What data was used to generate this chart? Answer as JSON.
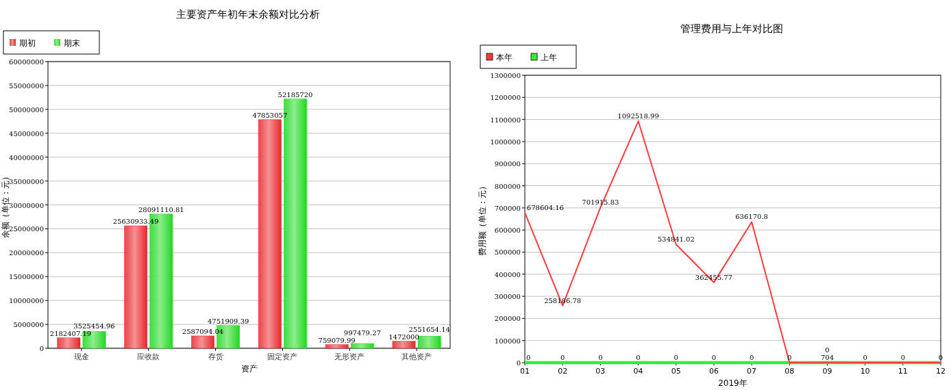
{
  "chart_data": [
    {
      "type": "bar",
      "title": "主要资产年初年末余额对比分析",
      "xlabel": "资产",
      "ylabel": "余额（单位：元）",
      "categories": [
        "现金",
        "应收款",
        "存货",
        "固定资产",
        "无形资产",
        "其他资产"
      ],
      "series": [
        {
          "name": "期初",
          "color": "#e8262b",
          "values": [
            2182407.19,
            25630933.49,
            2587094.04,
            47853057,
            759079.99,
            1472000
          ]
        },
        {
          "name": "期末",
          "color": "#1fd81f",
          "values": [
            3525454.96,
            28091110.81,
            4751909.39,
            52185720,
            997479.27,
            2551654.14
          ]
        }
      ],
      "ylim": [
        0,
        60000000
      ],
      "yticks": [
        0,
        5000000,
        10000000,
        15000000,
        20000000,
        25000000,
        30000000,
        35000000,
        40000000,
        45000000,
        50000000,
        55000000,
        60000000
      ],
      "grid": "y",
      "legend": "top left",
      "data_labels": true
    },
    {
      "type": "line",
      "title": "管理费用与上年对比图",
      "xlabel": "2019年",
      "ylabel": "费用额（单位：元）",
      "categories": [
        "01",
        "02",
        "03",
        "04",
        "05",
        "06",
        "07",
        "08",
        "09",
        "10",
        "11",
        "12"
      ],
      "series": [
        {
          "name": "本年",
          "color": "#ff3b3b",
          "values": [
            678604.16,
            258186.78,
            701915.83,
            1092518.99,
            534841.02,
            362455.77,
            636170.8,
            0,
            704,
            0,
            0,
            0
          ],
          "value_labels": [
            "678604.16",
            "258186.78",
            "701915.83",
            "1092518.99",
            "534841.02",
            "362455.77",
            "636170.8",
            null,
            "704",
            null,
            null,
            null
          ]
        },
        {
          "name": "上年",
          "color": "#33ee33",
          "values": [
            0,
            0,
            0,
            0,
            0,
            0,
            0,
            0,
            0,
            0,
            0,
            0
          ],
          "value_labels": [
            "0",
            "0",
            "0",
            "0",
            "0",
            "0",
            "0",
            "0",
            "0",
            "0",
            "0",
            "0"
          ]
        }
      ],
      "ylim": [
        0,
        1300000
      ],
      "yticks": [
        0,
        100000,
        200000,
        300000,
        400000,
        500000,
        600000,
        700000,
        800000,
        900000,
        1000000,
        1100000,
        1200000,
        1300000
      ],
      "grid": "y",
      "legend": "top left"
    }
  ]
}
